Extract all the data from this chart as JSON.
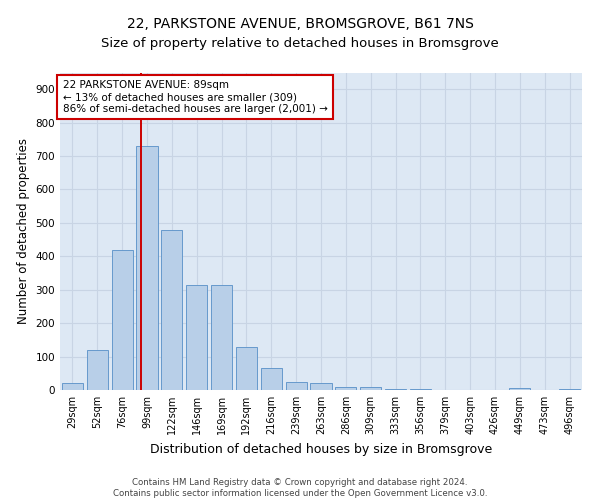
{
  "title": "22, PARKSTONE AVENUE, BROMSGROVE, B61 7NS",
  "subtitle": "Size of property relative to detached houses in Bromsgrove",
  "xlabel": "Distribution of detached houses by size in Bromsgrove",
  "ylabel": "Number of detached properties",
  "bar_labels": [
    "29sqm",
    "52sqm",
    "76sqm",
    "99sqm",
    "122sqm",
    "146sqm",
    "169sqm",
    "192sqm",
    "216sqm",
    "239sqm",
    "263sqm",
    "286sqm",
    "309sqm",
    "333sqm",
    "356sqm",
    "379sqm",
    "403sqm",
    "426sqm",
    "449sqm",
    "473sqm",
    "496sqm"
  ],
  "bar_values": [
    20,
    120,
    420,
    730,
    480,
    315,
    315,
    130,
    65,
    25,
    20,
    10,
    8,
    3,
    3,
    0,
    0,
    0,
    5,
    0,
    3
  ],
  "bar_color": "#b8cfe8",
  "bar_edge_color": "#6699cc",
  "bar_edge_width": 0.7,
  "vline_x": 2.77,
  "vline_color": "#cc0000",
  "annotation_text": "22 PARKSTONE AVENUE: 89sqm\n← 13% of detached houses are smaller (309)\n86% of semi-detached houses are larger (2,001) →",
  "annotation_box_color": "#cc0000",
  "ylim": [
    0,
    950
  ],
  "yticks": [
    0,
    100,
    200,
    300,
    400,
    500,
    600,
    700,
    800,
    900
  ],
  "grid_color": "#c8d4e4",
  "background_color": "#dde8f4",
  "footer_line1": "Contains HM Land Registry data © Crown copyright and database right 2024.",
  "footer_line2": "Contains public sector information licensed under the Open Government Licence v3.0.",
  "title_fontsize": 10,
  "subtitle_fontsize": 9.5,
  "xlabel_fontsize": 9,
  "ylabel_fontsize": 8.5,
  "tick_fontsize": 7,
  "annotation_fontsize": 7.5,
  "footer_fontsize": 6.2
}
